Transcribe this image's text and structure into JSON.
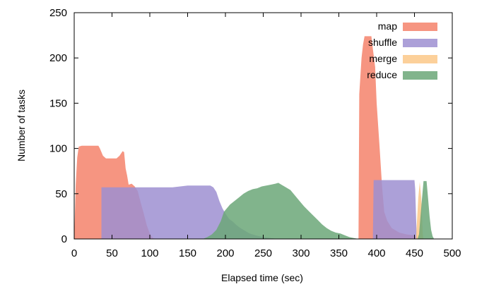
{
  "chart_data": {
    "type": "area",
    "xlabel": "Elapsed time (sec)",
    "ylabel": "Number of tasks",
    "xlim": [
      0,
      500
    ],
    "ylim": [
      0,
      250
    ],
    "xticks": [
      0,
      50,
      100,
      150,
      200,
      250,
      300,
      350,
      400,
      450,
      500
    ],
    "yticks": [
      0,
      50,
      100,
      150,
      200,
      250
    ],
    "grid": false,
    "legend_position": "top-right",
    "series": [
      {
        "name": "map",
        "color": "#f4826b",
        "points": [
          [
            0,
            0
          ],
          [
            2,
            60
          ],
          [
            4,
            90
          ],
          [
            6,
            102
          ],
          [
            10,
            103
          ],
          [
            20,
            103
          ],
          [
            32,
            103
          ],
          [
            34,
            100
          ],
          [
            38,
            92
          ],
          [
            42,
            89
          ],
          [
            50,
            89
          ],
          [
            56,
            89
          ],
          [
            60,
            92
          ],
          [
            64,
            97
          ],
          [
            66,
            96
          ],
          [
            68,
            78
          ],
          [
            70,
            70
          ],
          [
            72,
            60
          ],
          [
            76,
            61
          ],
          [
            80,
            58
          ],
          [
            84,
            53
          ],
          [
            88,
            40
          ],
          [
            92,
            28
          ],
          [
            96,
            15
          ],
          [
            100,
            6
          ],
          [
            104,
            1
          ],
          [
            108,
            0
          ],
          [
            376,
            0
          ],
          [
            377,
            160
          ],
          [
            380,
            200
          ],
          [
            382,
            215
          ],
          [
            384,
            224
          ],
          [
            393,
            224
          ],
          [
            395,
            210
          ],
          [
            398,
            190
          ],
          [
            400,
            150
          ],
          [
            404,
            100
          ],
          [
            407,
            60
          ],
          [
            410,
            30
          ],
          [
            414,
            20
          ],
          [
            420,
            12
          ],
          [
            430,
            7
          ],
          [
            440,
            5
          ],
          [
            450,
            4
          ],
          [
            455,
            0
          ],
          [
            500,
            0
          ]
        ]
      },
      {
        "name": "shuffle",
        "color": "#9d8fd1",
        "points": [
          [
            0,
            0
          ],
          [
            36,
            0
          ],
          [
            36,
            57
          ],
          [
            60,
            57
          ],
          [
            90,
            57
          ],
          [
            110,
            57
          ],
          [
            130,
            57
          ],
          [
            150,
            59
          ],
          [
            170,
            59
          ],
          [
            180,
            59
          ],
          [
            184,
            57
          ],
          [
            188,
            52
          ],
          [
            192,
            42
          ],
          [
            196,
            34
          ],
          [
            200,
            28
          ],
          [
            205,
            22
          ],
          [
            210,
            19
          ],
          [
            215,
            15
          ],
          [
            220,
            12
          ],
          [
            226,
            9
          ],
          [
            232,
            6
          ],
          [
            240,
            4
          ],
          [
            250,
            2
          ],
          [
            260,
            1
          ],
          [
            270,
            0
          ],
          [
            395,
            0
          ],
          [
            396,
            65
          ],
          [
            420,
            65
          ],
          [
            450,
            65
          ],
          [
            451,
            55
          ],
          [
            453,
            0
          ],
          [
            500,
            0
          ]
        ]
      },
      {
        "name": "merge",
        "color": "#fcc888",
        "points": [
          [
            0,
            0
          ],
          [
            452,
            0
          ],
          [
            455,
            45
          ],
          [
            457,
            63
          ],
          [
            459,
            45
          ],
          [
            461,
            5
          ],
          [
            462,
            0
          ],
          [
            500,
            0
          ]
        ]
      },
      {
        "name": "reduce",
        "color": "#6ba778",
        "points": [
          [
            0,
            0
          ],
          [
            170,
            0
          ],
          [
            176,
            2
          ],
          [
            182,
            5
          ],
          [
            188,
            10
          ],
          [
            194,
            20
          ],
          [
            198,
            30
          ],
          [
            202,
            34
          ],
          [
            206,
            38
          ],
          [
            212,
            42
          ],
          [
            218,
            46
          ],
          [
            224,
            50
          ],
          [
            230,
            53
          ],
          [
            236,
            55
          ],
          [
            242,
            56
          ],
          [
            248,
            58
          ],
          [
            254,
            59
          ],
          [
            260,
            60
          ],
          [
            266,
            61
          ],
          [
            270,
            62
          ],
          [
            274,
            60
          ],
          [
            280,
            57
          ],
          [
            286,
            54
          ],
          [
            292,
            48
          ],
          [
            298,
            42
          ],
          [
            304,
            36
          ],
          [
            310,
            31
          ],
          [
            316,
            26
          ],
          [
            322,
            21
          ],
          [
            328,
            16
          ],
          [
            334,
            12
          ],
          [
            340,
            9
          ],
          [
            346,
            7
          ],
          [
            352,
            6
          ],
          [
            358,
            4
          ],
          [
            364,
            2
          ],
          [
            370,
            1
          ],
          [
            376,
            0
          ],
          [
            454,
            0
          ],
          [
            456,
            5
          ],
          [
            458,
            25
          ],
          [
            460,
            45
          ],
          [
            462,
            64
          ],
          [
            466,
            64
          ],
          [
            468,
            45
          ],
          [
            470,
            25
          ],
          [
            472,
            10
          ],
          [
            474,
            3
          ],
          [
            476,
            0
          ],
          [
            500,
            0
          ]
        ]
      }
    ]
  }
}
